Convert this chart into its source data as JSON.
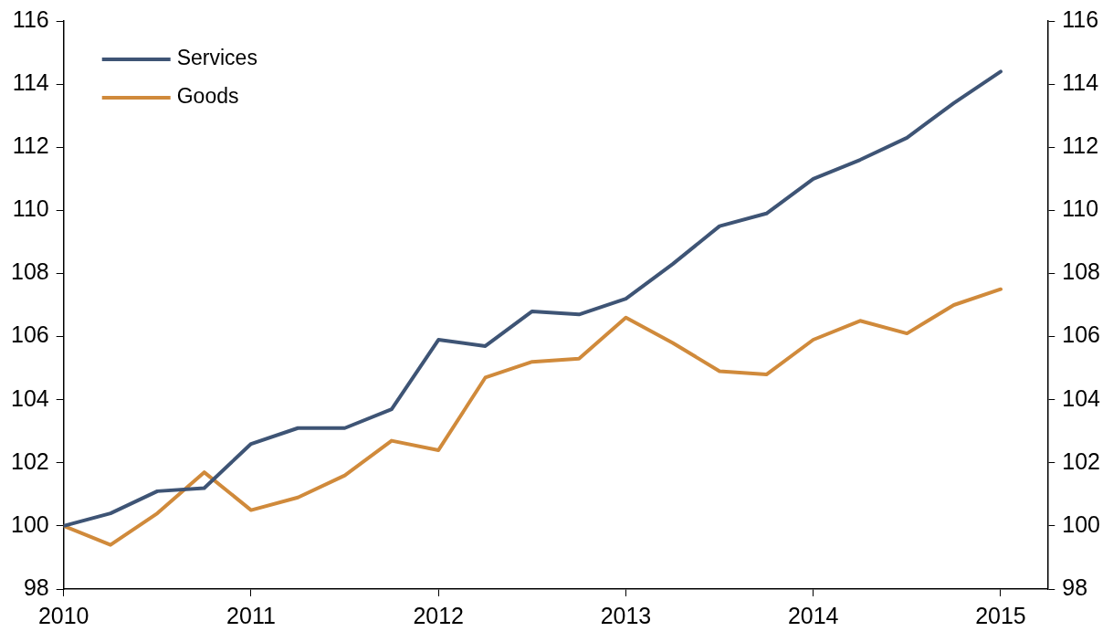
{
  "chart_data": {
    "type": "line",
    "x": [
      2010,
      2010.25,
      2010.5,
      2010.75,
      2011,
      2011.25,
      2011.5,
      2011.75,
      2012,
      2012.25,
      2012.5,
      2012.75,
      2013,
      2013.25,
      2013.5,
      2013.75,
      2014,
      2014.25,
      2014.5,
      2014.75,
      2015
    ],
    "series": [
      {
        "name": "Services",
        "color": "#3e5475",
        "values": [
          100.0,
          100.4,
          101.1,
          101.2,
          102.6,
          103.1,
          103.1,
          103.7,
          105.9,
          105.7,
          106.8,
          106.7,
          107.2,
          108.3,
          109.5,
          109.9,
          111.0,
          111.6,
          112.3,
          113.4,
          114.4
        ]
      },
      {
        "name": "Goods",
        "color": "#d08a3b",
        "values": [
          100.0,
          99.4,
          100.4,
          101.7,
          100.5,
          100.9,
          101.6,
          102.7,
          102.4,
          104.7,
          105.2,
          105.3,
          106.6,
          105.8,
          104.9,
          104.8,
          105.9,
          106.5,
          106.1,
          107.0,
          107.5
        ]
      }
    ],
    "xlim": [
      2010,
      2015.25
    ],
    "xticks": [
      2010,
      2011,
      2012,
      2013,
      2014,
      2015
    ],
    "ylim": [
      98,
      116
    ],
    "yticks": [
      98,
      100,
      102,
      104,
      106,
      108,
      110,
      112,
      114,
      116
    ],
    "y2lim": [
      98,
      116
    ],
    "y2ticks": [
      98,
      100,
      102,
      104,
      106,
      108,
      110,
      112,
      114,
      116
    ],
    "grid": false,
    "legend": "top left",
    "marker": "none",
    "line_style": "solid"
  }
}
